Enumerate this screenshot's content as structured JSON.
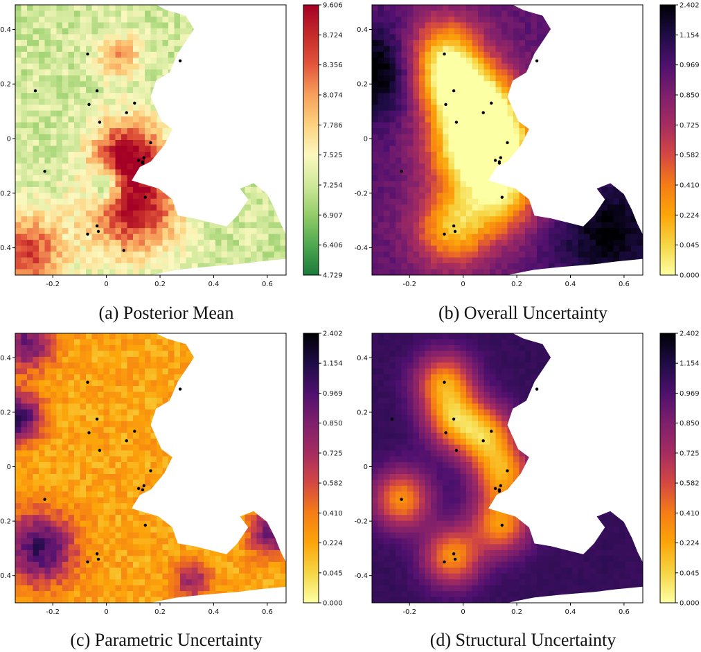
{
  "chart_data": [
    {
      "type": "heatmap",
      "caption": "(a) Posterior Mean",
      "colormap": "RdYlGn_r",
      "map_style": "mean",
      "xticks": [
        -0.2,
        0.0,
        0.2,
        0.4,
        0.6
      ],
      "yticks": [
        0.4,
        0.2,
        0.0,
        -0.2,
        -0.4
      ],
      "xlim": [
        -0.34,
        0.67
      ],
      "ylim": [
        -0.5,
        0.49
      ],
      "colorbar_ticks": [
        "9.606",
        "8.724",
        "8.356",
        "8.074",
        "7.786",
        "7.525",
        "7.254",
        "6.907",
        "6.406",
        "4.729"
      ],
      "colorbar_range": [
        4.729,
        9.606
      ],
      "points": [
        [
          -0.07,
          0.31
        ],
        [
          -0.035,
          0.175
        ],
        [
          -0.065,
          0.125
        ],
        [
          -0.025,
          0.06
        ],
        [
          0.075,
          0.095
        ],
        [
          0.105,
          0.13
        ],
        [
          0.165,
          -0.015
        ],
        [
          0.14,
          -0.07
        ],
        [
          0.135,
          -0.085
        ],
        [
          0.12,
          -0.08
        ],
        [
          0.135,
          -0.09
        ],
        [
          0.145,
          -0.215
        ],
        [
          -0.23,
          -0.12
        ],
        [
          -0.035,
          -0.32
        ],
        [
          -0.03,
          -0.34
        ],
        [
          -0.07,
          -0.35
        ],
        [
          0.065,
          -0.41
        ],
        [
          0.275,
          0.285
        ],
        [
          -0.265,
          0.175
        ]
      ]
    },
    {
      "type": "heatmap",
      "caption": "(b) Overall Uncertainty",
      "colormap": "inferno_r",
      "map_style": "overall",
      "xticks": [
        -0.2,
        0.0,
        0.2,
        0.4,
        0.6
      ],
      "yticks": [
        0.4,
        0.2,
        0.0,
        -0.2,
        -0.4
      ],
      "xlim": [
        -0.34,
        0.67
      ],
      "ylim": [
        -0.5,
        0.49
      ],
      "colorbar_ticks": [
        "2.402",
        "1.154",
        "0.969",
        "0.850",
        "0.725",
        "0.582",
        "0.410",
        "0.224",
        "0.045",
        "0.000"
      ],
      "colorbar_range": [
        0.0,
        2.402
      ],
      "points": [
        [
          -0.07,
          0.31
        ],
        [
          -0.035,
          0.175
        ],
        [
          -0.065,
          0.125
        ],
        [
          -0.025,
          0.06
        ],
        [
          0.075,
          0.095
        ],
        [
          0.105,
          0.13
        ],
        [
          0.165,
          -0.015
        ],
        [
          0.14,
          -0.07
        ],
        [
          0.135,
          -0.085
        ],
        [
          0.12,
          -0.08
        ],
        [
          0.135,
          -0.09
        ],
        [
          0.145,
          -0.215
        ],
        [
          -0.23,
          -0.12
        ],
        [
          -0.035,
          -0.32
        ],
        [
          -0.03,
          -0.34
        ],
        [
          -0.07,
          -0.35
        ],
        [
          0.275,
          0.285
        ]
      ]
    },
    {
      "type": "heatmap",
      "caption": "(c) Parametric Uncertainty",
      "colormap": "inferno_r",
      "map_style": "parametric",
      "xticks": [
        -0.2,
        0.0,
        0.2,
        0.4,
        0.6
      ],
      "yticks": [
        0.4,
        0.2,
        0.0,
        -0.2,
        -0.4
      ],
      "xlim": [
        -0.34,
        0.67
      ],
      "ylim": [
        -0.5,
        0.49
      ],
      "colorbar_ticks": [
        "2.402",
        "1.154",
        "0.969",
        "0.850",
        "0.725",
        "0.582",
        "0.410",
        "0.224",
        "0.045",
        "0.000"
      ],
      "colorbar_range": [
        0.0,
        2.402
      ],
      "points": [
        [
          -0.07,
          0.31
        ],
        [
          -0.035,
          0.175
        ],
        [
          -0.065,
          0.125
        ],
        [
          -0.025,
          0.06
        ],
        [
          0.075,
          0.095
        ],
        [
          0.105,
          0.13
        ],
        [
          0.165,
          -0.015
        ],
        [
          0.14,
          -0.07
        ],
        [
          0.135,
          -0.085
        ],
        [
          0.12,
          -0.08
        ],
        [
          0.145,
          -0.215
        ],
        [
          -0.23,
          -0.12
        ],
        [
          -0.035,
          -0.32
        ],
        [
          -0.03,
          -0.34
        ],
        [
          -0.07,
          -0.35
        ],
        [
          0.275,
          0.285
        ]
      ]
    },
    {
      "type": "heatmap",
      "caption": "(d) Structural Uncertainty",
      "colormap": "inferno_r",
      "map_style": "structural",
      "xticks": [
        -0.2,
        0.0,
        0.2,
        0.4,
        0.6
      ],
      "yticks": [
        0.4,
        0.2,
        0.0,
        -0.2,
        -0.4
      ],
      "xlim": [
        -0.34,
        0.67
      ],
      "ylim": [
        -0.5,
        0.49
      ],
      "colorbar_ticks": [
        "2.402",
        "1.154",
        "0.969",
        "0.850",
        "0.725",
        "0.582",
        "0.410",
        "0.224",
        "0.045",
        "0.000"
      ],
      "colorbar_range": [
        0.0,
        2.402
      ],
      "points": [
        [
          -0.07,
          0.31
        ],
        [
          -0.035,
          0.175
        ],
        [
          -0.065,
          0.125
        ],
        [
          -0.025,
          0.06
        ],
        [
          0.075,
          0.095
        ],
        [
          0.105,
          0.13
        ],
        [
          0.165,
          -0.015
        ],
        [
          0.14,
          -0.07
        ],
        [
          0.135,
          -0.085
        ],
        [
          0.12,
          -0.08
        ],
        [
          0.135,
          -0.09
        ],
        [
          0.145,
          -0.215
        ],
        [
          -0.23,
          -0.12
        ],
        [
          -0.035,
          -0.32
        ],
        [
          -0.03,
          -0.34
        ],
        [
          -0.07,
          -0.35
        ],
        [
          0.275,
          0.285
        ],
        [
          -0.265,
          0.175
        ]
      ]
    }
  ]
}
